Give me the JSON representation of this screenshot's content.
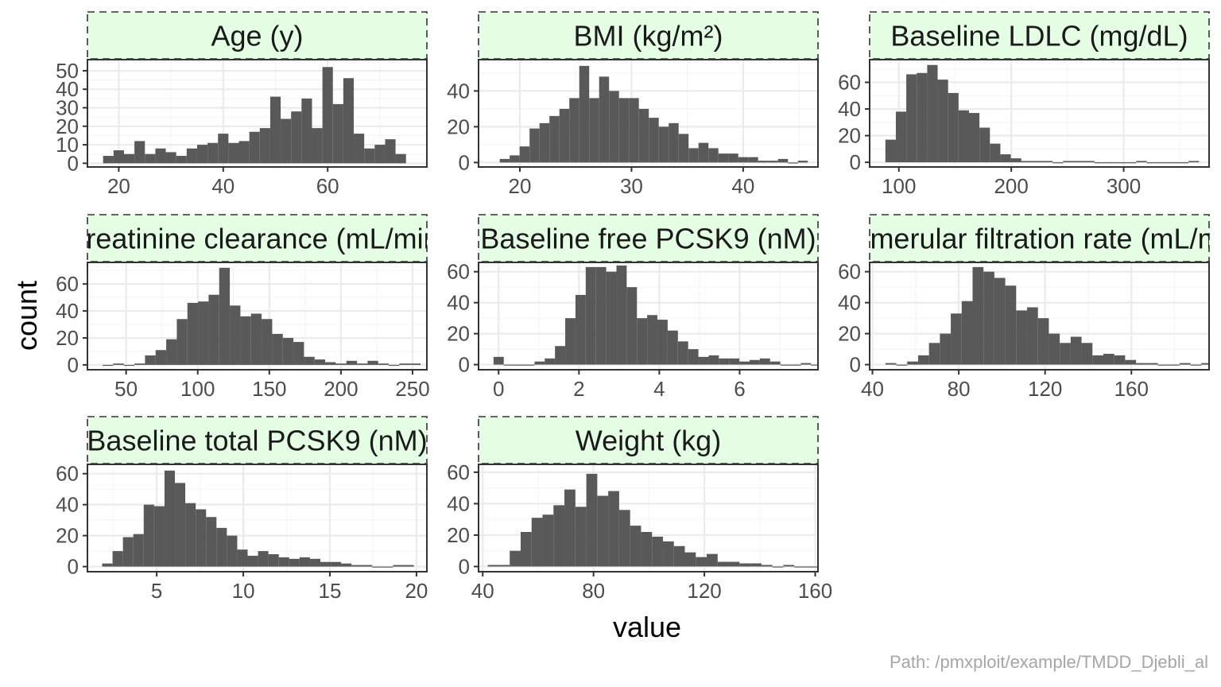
{
  "chart_data": {
    "type": "histogram-facets",
    "xlabel": "value",
    "ylabel": "count",
    "caption": "Path: /pmxploit/example/TMDD_Djebli_al",
    "colors": {
      "bar": "#595959",
      "strip_fill": "#e5ffe5",
      "strip_border": "#333333",
      "grid_major": "#ebebeb",
      "grid_minor": "#f5f5f5",
      "panel_border": "#333333"
    },
    "grid": true,
    "panels": [
      {
        "title": "Age (y)",
        "xlim": [
          14,
          79
        ],
        "ylim": [
          -2,
          56
        ],
        "xticks": [
          20,
          40,
          60
        ],
        "yticks": [
          0,
          10,
          20,
          30,
          40,
          50
        ],
        "bin_start": 17,
        "bin_width": 2,
        "counts": [
          4,
          7,
          5,
          12,
          5,
          8,
          6,
          4,
          8,
          10,
          11,
          16,
          11,
          12,
          17,
          19,
          36,
          24,
          28,
          35,
          19,
          52,
          32,
          46,
          16,
          8,
          10,
          13,
          5
        ]
      },
      {
        "title": "BMI (kg/m²)",
        "xlim": [
          16.3,
          46.7
        ],
        "ylim": [
          -2.5,
          57.5
        ],
        "xticks": [
          20,
          30,
          40
        ],
        "yticks": [
          0,
          20,
          40
        ],
        "bin_start": 18.2,
        "bin_width": 0.89,
        "counts": [
          2,
          4,
          9,
          19,
          22,
          26,
          30,
          36,
          54,
          36,
          48,
          40,
          36,
          36,
          30,
          25,
          20,
          22,
          16,
          8,
          11,
          8,
          5,
          5,
          3,
          3,
          1,
          1,
          2,
          0,
          1
        ]
      },
      {
        "title": "Baseline LDLC (mg/dL)",
        "xlim": [
          74,
          376
        ],
        "ylim": [
          -3.5,
          77
        ],
        "xticks": [
          100,
          200,
          300
        ],
        "yticks": [
          0,
          20,
          40,
          60
        ],
        "bin_start": 88,
        "bin_width": 9.3,
        "counts": [
          17,
          38,
          66,
          67,
          73,
          62,
          52,
          39,
          37,
          26,
          14,
          6,
          3,
          1,
          1,
          1,
          0,
          1,
          1,
          1,
          0,
          0,
          0,
          0,
          1,
          0,
          0,
          0,
          0,
          1
        ]
      },
      {
        "title": "Creatinine clearance (mL/min)",
        "xlim": [
          23,
          260
        ],
        "ylim": [
          -3.6,
          76
        ],
        "xticks": [
          50,
          100,
          150,
          200,
          250
        ],
        "yticks": [
          0,
          20,
          40,
          60
        ],
        "bin_start": 33.6,
        "bin_width": 7.4,
        "counts": [
          0,
          1,
          0,
          1,
          7,
          11,
          19,
          34,
          46,
          47,
          52,
          72,
          44,
          36,
          38,
          34,
          23,
          20,
          17,
          6,
          4,
          2,
          1,
          3,
          1,
          3,
          1,
          0,
          1,
          1
        ]
      },
      {
        "title": "Baseline free PCSK9 (nM)",
        "xlim": [
          -0.5,
          7.95
        ],
        "ylim": [
          -3.3,
          66
        ],
        "xticks": [
          0,
          2,
          4,
          6
        ],
        "yticks": [
          0,
          20,
          40,
          60
        ],
        "bin_start": -0.127,
        "bin_width": 0.255,
        "counts": [
          5,
          0,
          0,
          0,
          2,
          4,
          12,
          30,
          45,
          63,
          63,
          60,
          64,
          50,
          30,
          32,
          29,
          22,
          15,
          10,
          5,
          6,
          4,
          4,
          2,
          3,
          4,
          2,
          0,
          0,
          1,
          0,
          0,
          1
        ]
      },
      {
        "title": "Glomerular filtration rate (mL/min)",
        "xlim": [
          38.7,
          196
        ],
        "ylim": [
          -3.3,
          66
        ],
        "xticks": [
          40,
          80,
          120,
          160
        ],
        "yticks": [
          0,
          20,
          40,
          60
        ],
        "bin_start": 46,
        "bin_width": 5.05,
        "counts": [
          1,
          0,
          2,
          6,
          14,
          20,
          33,
          41,
          63,
          60,
          56,
          51,
          35,
          37,
          30,
          20,
          14,
          18,
          14,
          6,
          7,
          6,
          3,
          1,
          1,
          0,
          0,
          1,
          0,
          1
        ]
      },
      {
        "title": "Baseline total PCSK9 (nM)",
        "xlim": [
          1.0,
          20.6
        ],
        "ylim": [
          -3.3,
          66
        ],
        "xticks": [
          5,
          10,
          15,
          20
        ],
        "yticks": [
          0,
          20,
          40,
          60
        ],
        "bin_start": 1.85,
        "bin_width": 0.6,
        "counts": [
          2,
          10,
          19,
          21,
          40,
          39,
          62,
          54,
          41,
          37,
          32,
          25,
          20,
          11,
          7,
          10,
          8,
          6,
          5,
          6,
          5,
          3,
          3,
          2,
          1,
          1,
          0,
          0,
          1,
          1
        ]
      },
      {
        "title": "Weight (kg)",
        "xlim": [
          38.5,
          161
        ],
        "ylim": [
          -3.3,
          65
        ],
        "xticks": [
          40,
          80,
          120,
          160
        ],
        "yticks": [
          0,
          20,
          40,
          60
        ],
        "bin_start": 41.85,
        "bin_width": 3.95,
        "counts": [
          1,
          1,
          10,
          22,
          31,
          33,
          39,
          49,
          38,
          59,
          45,
          48,
          36,
          26,
          22,
          19,
          16,
          13,
          9,
          6,
          8,
          3,
          3,
          2,
          2,
          1,
          0,
          1,
          0,
          0,
          0,
          0,
          1
        ]
      }
    ]
  }
}
